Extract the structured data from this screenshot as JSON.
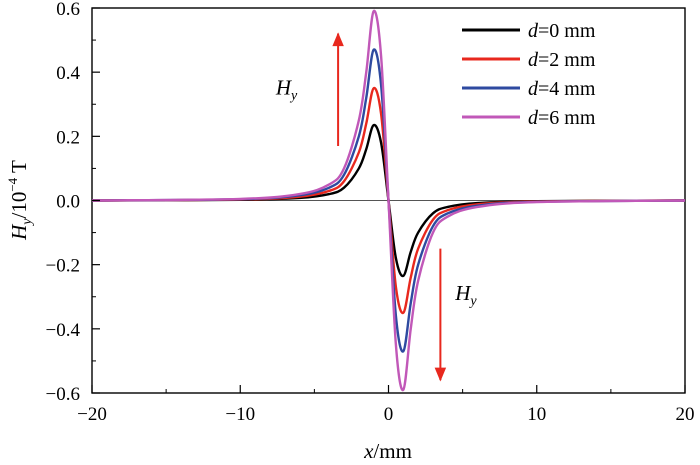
{
  "chart_data": {
    "type": "line",
    "xlabel": {
      "var": "x",
      "unit": "/mm"
    },
    "ylabel": {
      "var": "H",
      "sub": "y",
      "unit": "/10",
      "exp": "−4",
      "tail": " T"
    },
    "xlim": [
      -20,
      20
    ],
    "ylim": [
      -0.6,
      0.6
    ],
    "xticks": [
      -20,
      -10,
      0,
      10,
      20
    ],
    "yticks": [
      -0.6,
      -0.4,
      -0.2,
      0.0,
      0.2,
      0.4,
      0.6
    ],
    "xtick_labels": [
      "−20",
      "−10",
      "0",
      "10",
      "20"
    ],
    "ytick_labels": [
      "−0.6",
      "−0.4",
      "−0.2",
      "0.0",
      "0.2",
      "0.4",
      "0.6"
    ],
    "grid": false,
    "legend_position": "top-right",
    "series": [
      {
        "name_var": "d",
        "name_rest": "=0 mm",
        "color": "#000000",
        "x": [
          -20,
          -10,
          -6,
          -4,
          -3,
          -2,
          -1.5,
          -1,
          -0.5,
          0,
          0.5,
          1,
          1.5,
          2,
          3,
          4,
          6,
          10,
          20
        ],
        "y": [
          0.0,
          0.002,
          0.008,
          0.02,
          0.04,
          0.1,
          0.16,
          0.235,
          0.18,
          0.0,
          -0.18,
          -0.235,
          -0.16,
          -0.1,
          -0.04,
          -0.02,
          -0.008,
          -0.002,
          0.0
        ]
      },
      {
        "name_var": "d",
        "name_rest": "=2 mm",
        "color": "#e8281e",
        "x": [
          -20,
          -10,
          -6,
          -4,
          -3,
          -2,
          -1.5,
          -1,
          -0.5,
          0,
          0.5,
          1,
          1.5,
          2,
          3,
          4,
          6,
          10,
          20
        ],
        "y": [
          0.0,
          0.003,
          0.012,
          0.03,
          0.06,
          0.15,
          0.24,
          0.35,
          0.27,
          0.0,
          -0.27,
          -0.35,
          -0.24,
          -0.15,
          -0.06,
          -0.03,
          -0.012,
          -0.003,
          0.0
        ]
      },
      {
        "name_var": "d",
        "name_rest": "=4 mm",
        "color": "#2e4aa0",
        "x": [
          -20,
          -10,
          -6,
          -4,
          -3,
          -2,
          -1.5,
          -1,
          -0.5,
          0,
          0.5,
          1,
          1.5,
          2,
          3,
          4,
          6,
          10,
          20
        ],
        "y": [
          0.0,
          0.004,
          0.016,
          0.04,
          0.08,
          0.2,
          0.32,
          0.47,
          0.36,
          0.0,
          -0.36,
          -0.47,
          -0.32,
          -0.2,
          -0.08,
          -0.04,
          -0.016,
          -0.004,
          0.0
        ]
      },
      {
        "name_var": "d",
        "name_rest": "=6 mm",
        "color": "#c158b8",
        "x": [
          -20,
          -10,
          -6,
          -4,
          -3,
          -2,
          -1.5,
          -1,
          -0.5,
          0,
          0.5,
          1,
          1.5,
          2,
          3,
          4,
          6,
          10,
          20
        ],
        "y": [
          0.0,
          0.005,
          0.02,
          0.05,
          0.1,
          0.25,
          0.4,
          0.59,
          0.45,
          0.0,
          -0.45,
          -0.59,
          -0.4,
          -0.25,
          -0.1,
          -0.05,
          -0.02,
          -0.005,
          0.0
        ]
      }
    ],
    "annotations": [
      {
        "text_var": "H",
        "text_sub": "y",
        "direction": "up",
        "arrow_x": -3.4,
        "arrow_y_from": 0.17,
        "arrow_y_to": 0.52,
        "label_x": -7.6,
        "label_y": 0.33,
        "arrow_color": "#e8281e"
      },
      {
        "text_var": "H",
        "text_sub": "y",
        "direction": "down",
        "arrow_x": 3.5,
        "arrow_y_from": -0.15,
        "arrow_y_to": -0.56,
        "label_x": 4.5,
        "label_y": -0.31,
        "arrow_color": "#e8281e"
      }
    ]
  }
}
